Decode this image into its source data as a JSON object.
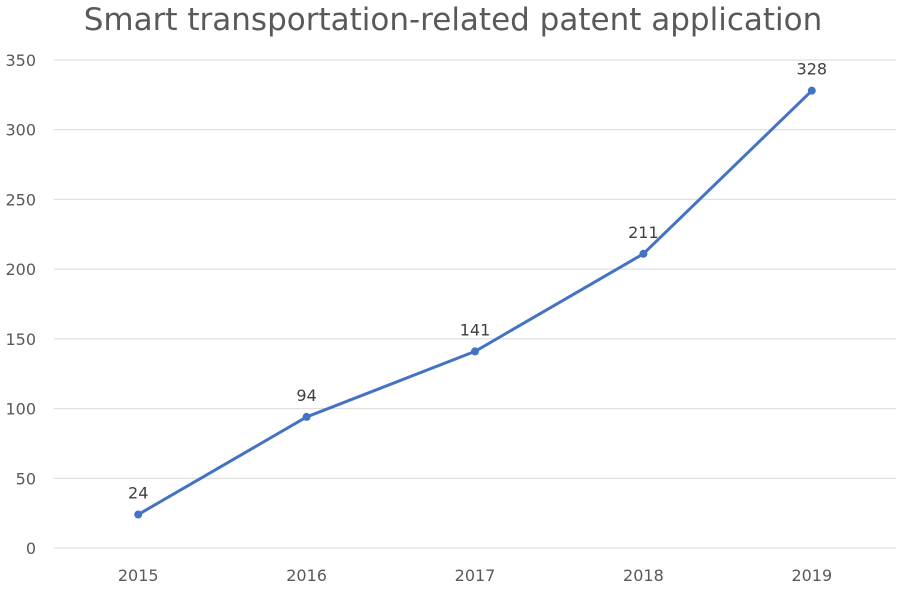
{
  "chart_data": {
    "type": "line",
    "title": "Smart transportation-related patent application",
    "xlabel": "",
    "ylabel": "",
    "categories": [
      "2015",
      "2016",
      "2017",
      "2018",
      "2019"
    ],
    "series": [
      {
        "values": [
          24,
          94,
          141,
          211,
          328
        ],
        "color": "#4472c4"
      }
    ],
    "ylim": [
      0,
      350
    ],
    "yticks": [
      0,
      50,
      100,
      150,
      200,
      250,
      300,
      350
    ],
    "grid": true,
    "legend": "none",
    "data_labels": true
  }
}
